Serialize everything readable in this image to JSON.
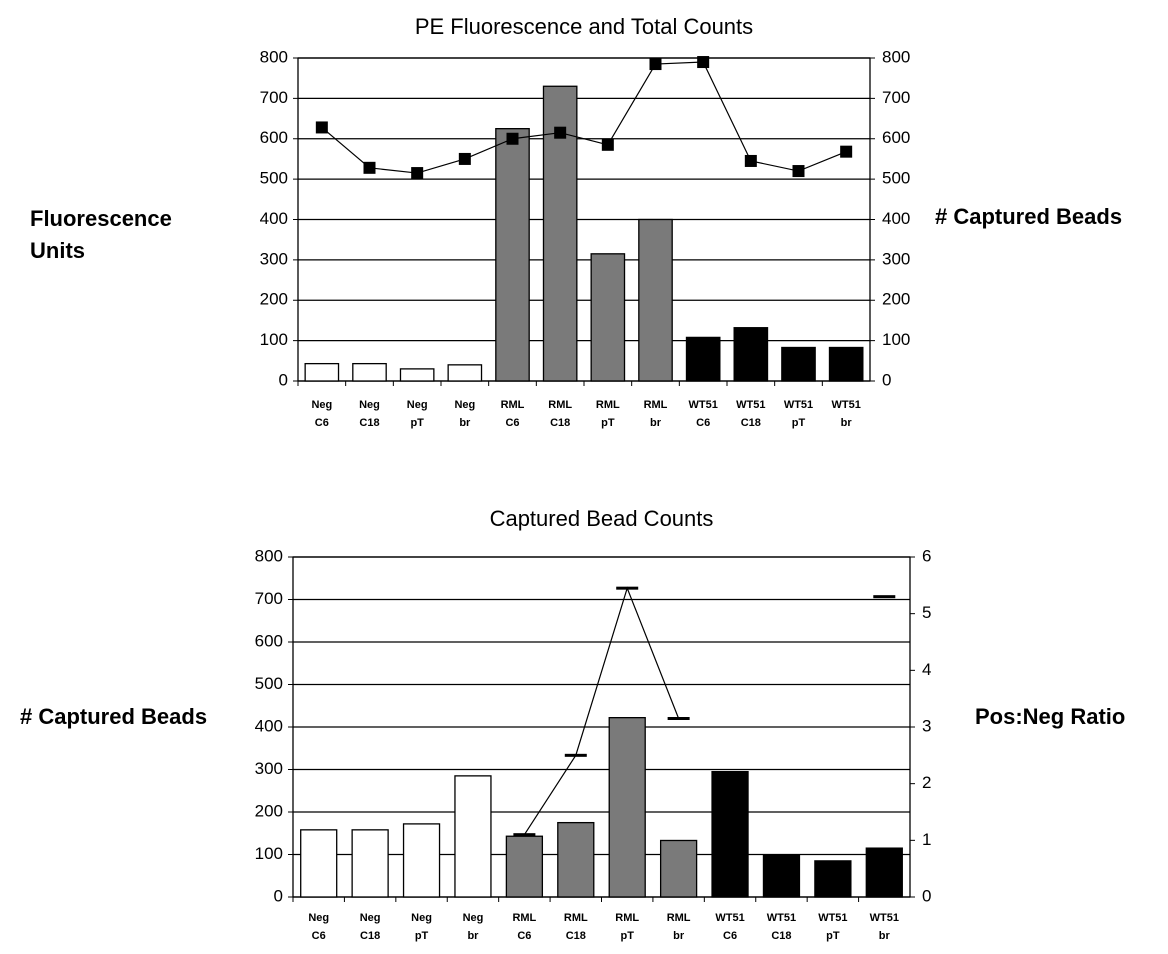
{
  "chart_data": [
    {
      "type": "bar",
      "title": "PE Fluorescence and Total Counts",
      "ylabel": [
        "Fluorescence",
        "Units"
      ],
      "y2label": "# Captured Beads",
      "categories": [
        [
          "Neg",
          "C6"
        ],
        [
          "Neg",
          "C18"
        ],
        [
          "Neg",
          "pT"
        ],
        [
          "Neg",
          "br"
        ],
        [
          "RML",
          "C6"
        ],
        [
          "RML",
          "C18"
        ],
        [
          "RML",
          "pT"
        ],
        [
          "RML",
          "br"
        ],
        [
          "WT51",
          "C6"
        ],
        [
          "WT51",
          "C18"
        ],
        [
          "WT51",
          "pT"
        ],
        [
          "WT51",
          "br"
        ]
      ],
      "series": [
        {
          "colors": [
            "#ffffff",
            "#ffffff",
            "#ffffff",
            "#ffffff",
            "#7a7a7a",
            "#7a7a7a",
            "#7a7a7a",
            "#7a7a7a",
            "#000000",
            "#000000",
            "#000000",
            "#000000"
          ],
          "values": [
            43,
            43,
            30,
            40,
            625,
            730,
            315,
            400,
            108,
            132,
            83,
            83
          ]
        },
        {
          "type": "line",
          "axis": "y2",
          "color": "#000000",
          "marker": "square",
          "values": [
            628,
            528,
            515,
            550,
            600,
            615,
            585,
            785,
            790,
            545,
            520,
            568
          ]
        }
      ],
      "ylim": [
        0,
        800
      ],
      "yticks": [
        0,
        100,
        200,
        300,
        400,
        500,
        600,
        700,
        800
      ],
      "y2lim": [
        0,
        800
      ],
      "y2ticks": [
        0,
        100,
        200,
        300,
        400,
        500,
        600,
        700,
        800
      ],
      "grid": true
    },
    {
      "type": "bar",
      "title": "Captured Bead Counts",
      "ylabel": [
        "# Captured Beads"
      ],
      "y2label": "Pos:Neg Ratio",
      "categories": [
        [
          "Neg",
          "C6"
        ],
        [
          "Neg",
          "C18"
        ],
        [
          "Neg",
          "pT"
        ],
        [
          "Neg",
          "br"
        ],
        [
          "RML",
          "C6"
        ],
        [
          "RML",
          "C18"
        ],
        [
          "RML",
          "pT"
        ],
        [
          "RML",
          "br"
        ],
        [
          "WT51",
          "C6"
        ],
        [
          "WT51",
          "C18"
        ],
        [
          "WT51",
          "pT"
        ],
        [
          "WT51",
          "br"
        ]
      ],
      "series": [
        {
          "colors": [
            "#ffffff",
            "#ffffff",
            "#ffffff",
            "#ffffff",
            "#7a7a7a",
            "#7a7a7a",
            "#7a7a7a",
            "#7a7a7a",
            "#000000",
            "#000000",
            "#000000",
            "#000000"
          ],
          "values": [
            158,
            158,
            172,
            285,
            143,
            175,
            422,
            133,
            295,
            98,
            85,
            115
          ]
        },
        {
          "type": "line",
          "axis": "y2",
          "color": "#000000",
          "marker": "dash",
          "values": [
            null,
            null,
            null,
            null,
            1.1,
            2.5,
            5.45,
            3.15,
            null,
            null,
            null,
            5.3
          ]
        }
      ],
      "ylim": [
        0,
        800
      ],
      "yticks": [
        0,
        100,
        200,
        300,
        400,
        500,
        600,
        700,
        800
      ],
      "y2lim": [
        0,
        6
      ],
      "y2ticks": [
        0,
        1,
        2,
        3,
        4,
        5,
        6
      ],
      "grid": true
    }
  ]
}
